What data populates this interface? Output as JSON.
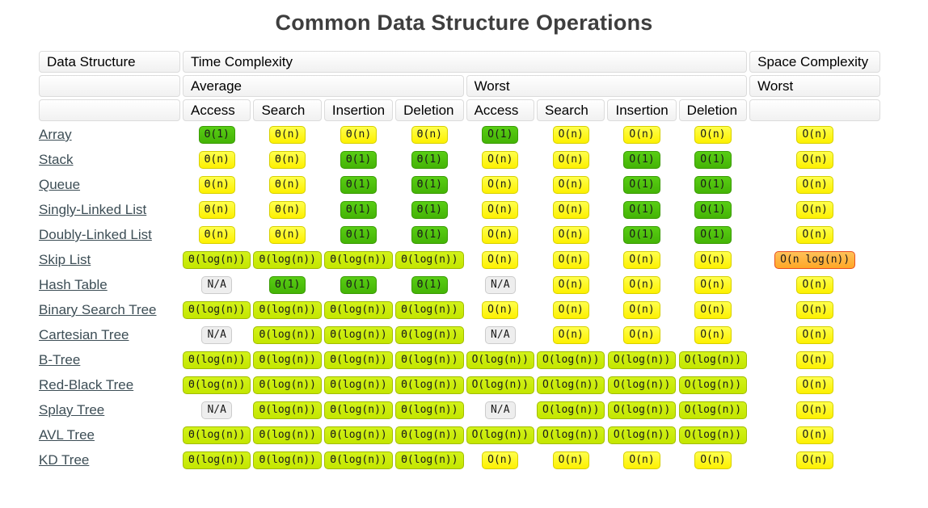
{
  "title": "Common Data Structure Operations",
  "colors": {
    "green": "#45b406",
    "green_top": "#58cd14",
    "green_border": "#3a9b04",
    "yellow_green": "#c4e600",
    "yellow_green_border": "#a2bd00",
    "yellow": "#fdf000",
    "yellow_border": "#d6d000",
    "orange": "#ffa726",
    "orange_border": "#e84f20",
    "na_gray": "#eeeeee",
    "na_gray_border": "#cccccc",
    "title_text": "#3e3e3e",
    "link_text": "#3d4e56"
  },
  "table": {
    "headers": {
      "data_structure": "Data Structure",
      "time_complexity": "Time Complexity",
      "space_complexity": "Space Complexity",
      "average": "Average",
      "worst": "Worst",
      "space_worst": "Worst",
      "operations": [
        "Access",
        "Search",
        "Insertion",
        "Deletion",
        "Access",
        "Search",
        "Insertion",
        "Deletion"
      ]
    },
    "rows": [
      {
        "name": "Array",
        "ops": [
          [
            "Θ(1)",
            "g"
          ],
          [
            "Θ(n)",
            "y"
          ],
          [
            "Θ(n)",
            "y"
          ],
          [
            "Θ(n)",
            "y"
          ],
          [
            "O(1)",
            "g"
          ],
          [
            "O(n)",
            "y"
          ],
          [
            "O(n)",
            "y"
          ],
          [
            "O(n)",
            "y"
          ]
        ],
        "space": [
          "O(n)",
          "y"
        ]
      },
      {
        "name": "Stack",
        "ops": [
          [
            "Θ(n)",
            "y"
          ],
          [
            "Θ(n)",
            "y"
          ],
          [
            "Θ(1)",
            "g"
          ],
          [
            "Θ(1)",
            "g"
          ],
          [
            "O(n)",
            "y"
          ],
          [
            "O(n)",
            "y"
          ],
          [
            "O(1)",
            "g"
          ],
          [
            "O(1)",
            "g"
          ]
        ],
        "space": [
          "O(n)",
          "y"
        ]
      },
      {
        "name": "Queue",
        "ops": [
          [
            "Θ(n)",
            "y"
          ],
          [
            "Θ(n)",
            "y"
          ],
          [
            "Θ(1)",
            "g"
          ],
          [
            "Θ(1)",
            "g"
          ],
          [
            "O(n)",
            "y"
          ],
          [
            "O(n)",
            "y"
          ],
          [
            "O(1)",
            "g"
          ],
          [
            "O(1)",
            "g"
          ]
        ],
        "space": [
          "O(n)",
          "y"
        ]
      },
      {
        "name": "Singly-Linked List",
        "ops": [
          [
            "Θ(n)",
            "y"
          ],
          [
            "Θ(n)",
            "y"
          ],
          [
            "Θ(1)",
            "g"
          ],
          [
            "Θ(1)",
            "g"
          ],
          [
            "O(n)",
            "y"
          ],
          [
            "O(n)",
            "y"
          ],
          [
            "O(1)",
            "g"
          ],
          [
            "O(1)",
            "g"
          ]
        ],
        "space": [
          "O(n)",
          "y"
        ]
      },
      {
        "name": "Doubly-Linked List",
        "ops": [
          [
            "Θ(n)",
            "y"
          ],
          [
            "Θ(n)",
            "y"
          ],
          [
            "Θ(1)",
            "g"
          ],
          [
            "Θ(1)",
            "g"
          ],
          [
            "O(n)",
            "y"
          ],
          [
            "O(n)",
            "y"
          ],
          [
            "O(1)",
            "g"
          ],
          [
            "O(1)",
            "g"
          ]
        ],
        "space": [
          "O(n)",
          "y"
        ]
      },
      {
        "name": "Skip List",
        "ops": [
          [
            "Θ(log(n))",
            "yg"
          ],
          [
            "Θ(log(n))",
            "yg"
          ],
          [
            "Θ(log(n))",
            "yg"
          ],
          [
            "Θ(log(n))",
            "yg"
          ],
          [
            "O(n)",
            "y"
          ],
          [
            "O(n)",
            "y"
          ],
          [
            "O(n)",
            "y"
          ],
          [
            "O(n)",
            "y"
          ]
        ],
        "space": [
          "O(n log(n))",
          "o"
        ]
      },
      {
        "name": "Hash Table",
        "ops": [
          [
            "N/A",
            "na"
          ],
          [
            "Θ(1)",
            "g"
          ],
          [
            "Θ(1)",
            "g"
          ],
          [
            "Θ(1)",
            "g"
          ],
          [
            "N/A",
            "na"
          ],
          [
            "O(n)",
            "y"
          ],
          [
            "O(n)",
            "y"
          ],
          [
            "O(n)",
            "y"
          ]
        ],
        "space": [
          "O(n)",
          "y"
        ]
      },
      {
        "name": "Binary Search Tree",
        "ops": [
          [
            "Θ(log(n))",
            "yg"
          ],
          [
            "Θ(log(n))",
            "yg"
          ],
          [
            "Θ(log(n))",
            "yg"
          ],
          [
            "Θ(log(n))",
            "yg"
          ],
          [
            "O(n)",
            "y"
          ],
          [
            "O(n)",
            "y"
          ],
          [
            "O(n)",
            "y"
          ],
          [
            "O(n)",
            "y"
          ]
        ],
        "space": [
          "O(n)",
          "y"
        ]
      },
      {
        "name": "Cartesian Tree",
        "ops": [
          [
            "N/A",
            "na"
          ],
          [
            "Θ(log(n))",
            "yg"
          ],
          [
            "Θ(log(n))",
            "yg"
          ],
          [
            "Θ(log(n))",
            "yg"
          ],
          [
            "N/A",
            "na"
          ],
          [
            "O(n)",
            "y"
          ],
          [
            "O(n)",
            "y"
          ],
          [
            "O(n)",
            "y"
          ]
        ],
        "space": [
          "O(n)",
          "y"
        ]
      },
      {
        "name": "B-Tree",
        "ops": [
          [
            "Θ(log(n))",
            "yg"
          ],
          [
            "Θ(log(n))",
            "yg"
          ],
          [
            "Θ(log(n))",
            "yg"
          ],
          [
            "Θ(log(n))",
            "yg"
          ],
          [
            "O(log(n))",
            "yg"
          ],
          [
            "O(log(n))",
            "yg"
          ],
          [
            "O(log(n))",
            "yg"
          ],
          [
            "O(log(n))",
            "yg"
          ]
        ],
        "space": [
          "O(n)",
          "y"
        ]
      },
      {
        "name": "Red-Black Tree",
        "ops": [
          [
            "Θ(log(n))",
            "yg"
          ],
          [
            "Θ(log(n))",
            "yg"
          ],
          [
            "Θ(log(n))",
            "yg"
          ],
          [
            "Θ(log(n))",
            "yg"
          ],
          [
            "O(log(n))",
            "yg"
          ],
          [
            "O(log(n))",
            "yg"
          ],
          [
            "O(log(n))",
            "yg"
          ],
          [
            "O(log(n))",
            "yg"
          ]
        ],
        "space": [
          "O(n)",
          "y"
        ]
      },
      {
        "name": "Splay Tree",
        "ops": [
          [
            "N/A",
            "na"
          ],
          [
            "Θ(log(n))",
            "yg"
          ],
          [
            "Θ(log(n))",
            "yg"
          ],
          [
            "Θ(log(n))",
            "yg"
          ],
          [
            "N/A",
            "na"
          ],
          [
            "O(log(n))",
            "yg"
          ],
          [
            "O(log(n))",
            "yg"
          ],
          [
            "O(log(n))",
            "yg"
          ]
        ],
        "space": [
          "O(n)",
          "y"
        ]
      },
      {
        "name": "AVL Tree",
        "ops": [
          [
            "Θ(log(n))",
            "yg"
          ],
          [
            "Θ(log(n))",
            "yg"
          ],
          [
            "Θ(log(n))",
            "yg"
          ],
          [
            "Θ(log(n))",
            "yg"
          ],
          [
            "O(log(n))",
            "yg"
          ],
          [
            "O(log(n))",
            "yg"
          ],
          [
            "O(log(n))",
            "yg"
          ],
          [
            "O(log(n))",
            "yg"
          ]
        ],
        "space": [
          "O(n)",
          "y"
        ]
      },
      {
        "name": "KD Tree",
        "ops": [
          [
            "Θ(log(n))",
            "yg"
          ],
          [
            "Θ(log(n))",
            "yg"
          ],
          [
            "Θ(log(n))",
            "yg"
          ],
          [
            "Θ(log(n))",
            "yg"
          ],
          [
            "O(n)",
            "y"
          ],
          [
            "O(n)",
            "y"
          ],
          [
            "O(n)",
            "y"
          ],
          [
            "O(n)",
            "y"
          ]
        ],
        "space": [
          "O(n)",
          "y"
        ]
      }
    ]
  }
}
